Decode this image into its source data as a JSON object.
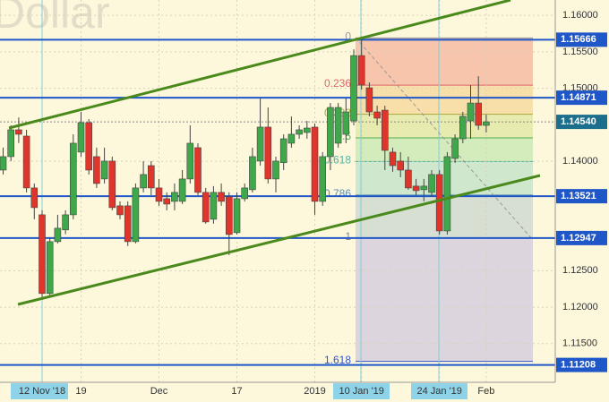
{
  "chart_data": {
    "type": "candlestick",
    "watermark": "Dollar",
    "categories": [
      null,
      null,
      null,
      null,
      null,
      "12 Nov '18",
      null,
      null,
      null,
      null,
      "19",
      null,
      null,
      null,
      null,
      null,
      null,
      null,
      null,
      null,
      "Dec",
      null,
      null,
      null,
      null,
      null,
      null,
      null,
      null,
      null,
      "17",
      null,
      null,
      null,
      null,
      null,
      null,
      null,
      null,
      null,
      "2019",
      null,
      null,
      null,
      null,
      null,
      "10 Jan '19",
      null,
      null,
      null,
      null,
      null,
      null,
      null,
      null,
      null,
      "24 Jan '19",
      null,
      null,
      null,
      null,
      null,
      "Feb"
    ],
    "open": [
      1.13879,
      1.14063,
      1.14431,
      1.14345,
      1.13634,
      1.13266,
      1.12187,
      1.12898,
      1.13059,
      1.13266,
      1.14125,
      1.14529,
      1.14063,
      1.13757,
      1.14002,
      1.13389,
      1.13389,
      1.12898,
      1.13634,
      1.1394,
      1.13634,
      1.13487,
      1.1345,
      1.1345,
      1.13757,
      1.14186,
      1.13573,
      1.13205,
      1.13573,
      1.13512,
      1.13021,
      1.13487,
      1.1361,
      1.14002,
      1.14468,
      1.13757,
      1.13981,
      1.14247,
      1.1437,
      1.14394,
      1.14468,
      1.1345,
      1.14063,
      1.14247,
      1.14369,
      1.14553,
      1.15448,
      1.15007,
      1.14676,
      1.147,
      1.14125,
      1.14002,
      1.13879,
      1.13659,
      1.1361,
      1.13573,
      1.13818,
      1.13045,
      1.14039,
      1.14308,
      1.14553,
      1.14798,
      1.14492
    ],
    "high": [
      1.14186,
      1.14492,
      1.146,
      1.14431,
      1.13695,
      1.13327,
      1.1296,
      1.13266,
      1.13327,
      1.14369,
      1.14676,
      1.14578,
      1.14186,
      1.14186,
      1.14063,
      1.1345,
      1.1345,
      1.13695,
      1.14002,
      1.14002,
      1.13757,
      1.13573,
      1.13695,
      1.13879,
      1.14492,
      1.14247,
      1.13634,
      1.13659,
      1.13695,
      1.13573,
      1.13573,
      1.13695,
      1.14186,
      1.1486,
      1.14737,
      1.14063,
      1.14369,
      1.14614,
      1.14492,
      1.14553,
      1.14517,
      1.14125,
      1.14798,
      1.14798,
      1.1486,
      1.15534,
      1.15693,
      1.15081,
      1.14761,
      1.14761,
      1.14186,
      1.14125,
      1.14063,
      1.13757,
      1.13757,
      1.13879,
      1.13879,
      1.14125,
      1.14369,
      1.14676,
      1.15044,
      1.15166,
      1.14639
    ],
    "low": [
      1.13818,
      1.14002,
      1.1425,
      1.13573,
      1.13205,
      1.12138,
      1.12162,
      1.12874,
      1.13,
      1.13205,
      1.14063,
      1.13818,
      1.13634,
      1.13695,
      1.13327,
      1.13205,
      1.12837,
      1.12874,
      1.13573,
      1.13536,
      1.13389,
      1.13327,
      1.13327,
      1.13413,
      1.13695,
      1.13536,
      1.13144,
      1.13144,
      1.13389,
      1.12714,
      1.12996,
      1.1345,
      1.13573,
      1.1394,
      1.13695,
      1.13573,
      1.13879,
      1.14186,
      1.14308,
      1.14308,
      1.13266,
      1.13389,
      1.13879,
      1.14186,
      1.14247,
      1.14492,
      1.14982,
      1.14615,
      1.14492,
      1.13879,
      1.13855,
      1.13781,
      1.1361,
      1.13536,
      1.1345,
      1.13512,
      1.12996,
      1.12996,
      1.13977,
      1.14247,
      1.14308,
      1.14431,
      1.14394
    ],
    "close": [
      1.14063,
      1.14431,
      1.1437,
      1.13634,
      1.13364,
      1.12187,
      1.12898,
      1.13082,
      1.13266,
      1.14247,
      1.14529,
      1.13879,
      1.13695,
      1.14002,
      1.13364,
      1.13266,
      1.12898,
      1.13634,
      1.13818,
      1.13634,
      1.1345,
      1.13413,
      1.13573,
      1.13757,
      1.14247,
      1.13573,
      1.13168,
      1.13573,
      1.1345,
      1.12996,
      1.13487,
      1.13634,
      1.14063,
      1.14468,
      1.13757,
      1.14002,
      1.14308,
      1.1437,
      1.14431,
      1.14455,
      1.1345,
      1.14063,
      1.14737,
      1.14737,
      1.14676,
      1.15448,
      1.15044,
      1.14676,
      1.1459,
      1.14149,
      1.1394,
      1.13879,
      1.13634,
      1.13597,
      1.13659,
      1.13818,
      1.13045,
      1.14063,
      1.14308,
      1.14615,
      1.14798,
      1.14492,
      1.1454
    ],
    "up_color": "#3fa84a",
    "down_color": "#e0352b",
    "ylim": [
      1.1097,
      1.1621
    ],
    "yticks": [
      {
        "value": 1.16,
        "label": "1.16000"
      },
      {
        "value": 1.155,
        "label": "1.15500"
      },
      {
        "value": 1.15,
        "label": "1.15000"
      },
      {
        "value": 1.14,
        "label": "1.14000"
      },
      {
        "value": 1.125,
        "label": "1.12500"
      },
      {
        "value": 1.12,
        "label": "1.12000"
      },
      {
        "value": 1.115,
        "label": "1.11500"
      }
    ],
    "grid": true,
    "price_levels": [
      1.15666,
      1.14871,
      1.13521,
      1.12947,
      1.11208
    ],
    "level_color": "#1f57c8",
    "current_price": {
      "value": 1.1454,
      "label": "1.14540"
    },
    "fibonacci": {
      "high": 1.1569,
      "low": 1.1295,
      "levels": [
        0,
        0.236,
        0.382,
        0.5,
        0.618,
        0.786,
        1,
        1.618
      ],
      "line_colors": [
        "#999999",
        "#e06666",
        "#a8a83a",
        "#4caf50",
        "#4fb3a0",
        "#5a8fb0",
        "#888888",
        "#3355cc"
      ],
      "band_colors": [
        "#f4b39c",
        "#f6d79a",
        "#dfe7a0",
        "#c6e8b0",
        "#bfe2c8",
        "#c9d5cf",
        "#d0c9dd"
      ]
    }
  }
}
